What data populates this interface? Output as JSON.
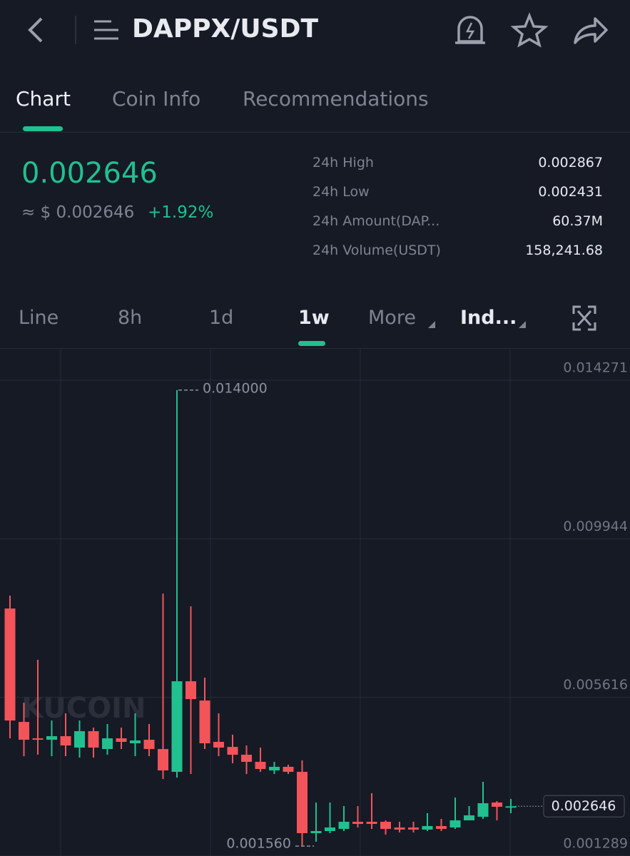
{
  "header": {
    "title": "DAPPX/USDT"
  },
  "tabs": [
    "Chart",
    "Coin Info",
    "Recommendations"
  ],
  "ticker": {
    "price": "0.002646",
    "usd": "≈ $ 0.002646",
    "change": "+1.92%",
    "stats": [
      {
        "label": "24h High",
        "value": "0.002867"
      },
      {
        "label": "24h Low",
        "value": "0.002431"
      },
      {
        "label": "24h Amount(DAP...",
        "value": "60.37M"
      },
      {
        "label": "24h Volume(USDT)",
        "value": "158,241.68"
      }
    ]
  },
  "intervals": [
    "Line",
    "8h",
    "1d",
    "1w",
    "More",
    "Ind..."
  ],
  "watermark": "KUCOIN",
  "chart_data": {
    "type": "candlestick",
    "ohlc": [
      [
        0.008042,
        0.008392,
        0.0045,
        0.004986
      ],
      [
        0.004947,
        0.005473,
        0.004013,
        0.004461
      ],
      [
        0.0045,
        0.006641,
        0.004052,
        0.004461
      ],
      [
        0.004461,
        0.004986,
        0.004013,
        0.004558
      ],
      [
        0.004558,
        0.005181,
        0.004013,
        0.004305
      ],
      [
        0.004247,
        0.004986,
        0.003974,
        0.004695
      ],
      [
        0.004695,
        0.004792,
        0.003974,
        0.004247
      ],
      [
        0.004208,
        0.004889,
        0.004052,
        0.0045
      ],
      [
        0.0045,
        0.004792,
        0.004208,
        0.004403
      ],
      [
        0.004364,
        0.005181,
        0.004013,
        0.004442
      ],
      [
        0.004461,
        0.004889,
        0.004013,
        0.004208
      ],
      [
        0.004208,
        0.00845,
        0.003391,
        0.003624
      ],
      [
        0.003585,
        0.014,
        0.00343,
        0.006057
      ],
      [
        0.006057,
        0.0081,
        0.003527,
        0.00557
      ],
      [
        0.005531,
        0.006154,
        0.004208,
        0.004364
      ],
      [
        0.004403,
        0.005181,
        0.004013,
        0.004247
      ],
      [
        0.004266,
        0.004597,
        0.003819,
        0.004052
      ],
      [
        0.004052,
        0.004305,
        0.003527,
        0.003858
      ],
      [
        0.003858,
        0.004247,
        0.003585,
        0.003663
      ],
      [
        0.003624,
        0.003858,
        0.003527,
        0.003722
      ],
      [
        0.003722,
        0.00378,
        0.003527,
        0.003585
      ],
      [
        0.003585,
        0.003897,
        0.00156,
        0.001912
      ],
      [
        0.001912,
        0.002749,
        0.001678,
        0.00197
      ],
      [
        0.00197,
        0.002749,
        0.001912,
        0.002067
      ],
      [
        0.002028,
        0.002651,
        0.00197,
        0.002223
      ],
      [
        0.002223,
        0.002651,
        0.002067,
        0.002165
      ],
      [
        0.002223,
        0.003001,
        0.002028,
        0.002165
      ],
      [
        0.002223,
        0.002262,
        0.001873,
        0.002028
      ],
      [
        0.002067,
        0.002223,
        0.001931,
        0.002009
      ],
      [
        0.002067,
        0.002223,
        0.001931,
        0.002009
      ],
      [
        0.002009,
        0.002457,
        0.00197,
        0.002106
      ],
      [
        0.002106,
        0.002301,
        0.00197,
        0.002028
      ],
      [
        0.002067,
        0.002885,
        0.002028,
        0.002262
      ],
      [
        0.002262,
        0.002651,
        0.002262,
        0.002398
      ],
      [
        0.002359,
        0.003313,
        0.002301,
        0.002729
      ],
      [
        0.002749,
        0.002787,
        0.002262,
        0.002632
      ],
      [
        0.002632,
        0.002846,
        0.002457,
        0.002646
      ]
    ],
    "ylim": [
      0.001289,
      0.014271
    ],
    "yticks": [
      0.001289,
      0.005616,
      0.009944,
      0.014271
    ],
    "max_label": {
      "value": 0.014,
      "label": "0.014000"
    },
    "min_label": {
      "value": 0.00156,
      "label": "0.001560"
    },
    "last_price": 0.002646,
    "colors": {
      "up": "#21c08f",
      "down": "#f2545a"
    },
    "grid": true
  }
}
